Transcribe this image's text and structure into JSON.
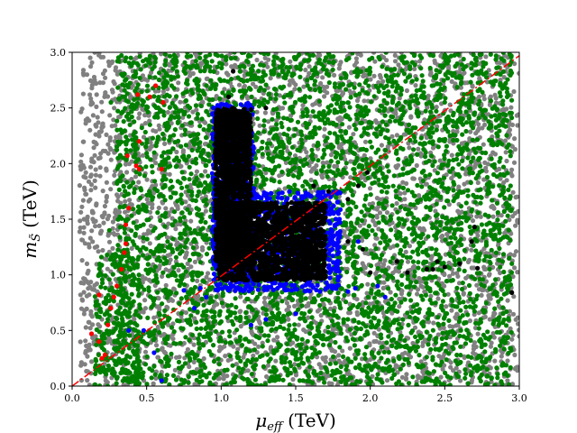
{
  "chart_data": {
    "type": "scatter",
    "xlabel_main": "μ",
    "xlabel_sub": "eff",
    "xlabel_unit": "(TeV)",
    "ylabel_main": "m",
    "ylabel_sub": "S̃",
    "ylabel_unit": "(TeV)",
    "xlim": [
      0.0,
      3.0
    ],
    "ylim": [
      0.0,
      3.0
    ],
    "xticks": [
      "0.0",
      "0.5",
      "1.0",
      "1.5",
      "2.0",
      "2.5",
      "3.0"
    ],
    "yticks": [
      "0.0",
      "0.5",
      "1.0",
      "1.5",
      "2.0",
      "2.5",
      "3.0"
    ],
    "grid": false,
    "legend": "none",
    "colors": {
      "gray": "#808080",
      "green": "#008000",
      "red": "#ff0000",
      "blue": "#0000ff",
      "black": "#000000",
      "reference_line": "#ff0000"
    },
    "reference_line": {
      "style": "dash-dot",
      "points": [
        [
          0.0,
          0.0
        ],
        [
          3.0,
          2.97
        ]
      ]
    },
    "series": [
      {
        "color_key": "gray",
        "regions": [
          {
            "x": [
              0.05,
              3.0
            ],
            "y": [
              0.0,
              3.0
            ],
            "count": 3600
          }
        ],
        "points": [
          [
            0.1,
            2.8
          ],
          [
            0.12,
            2.3
          ],
          [
            0.08,
            1.5
          ],
          [
            0.15,
            0.4
          ],
          [
            0.2,
            0.6
          ],
          [
            0.25,
            2.9
          ],
          [
            2.9,
            2.9
          ],
          [
            2.95,
            2.1
          ]
        ]
      },
      {
        "color_key": "green",
        "regions": [
          {
            "x": [
              0.3,
              2.95
            ],
            "y": [
              0.0,
              3.0
            ],
            "count": 4200
          },
          {
            "x": [
              0.15,
              0.45
            ],
            "y": [
              0.0,
              1.2
            ],
            "count": 250
          }
        ],
        "points": [
          [
            0.2,
            0.45
          ],
          [
            0.25,
            1.4
          ],
          [
            0.3,
            2.15
          ],
          [
            0.35,
            2.7
          ],
          [
            2.6,
            0.45
          ],
          [
            2.85,
            0.6
          ],
          [
            2.95,
            1.1
          ],
          [
            0.2,
            0.38
          ],
          [
            0.26,
            2.55
          ]
        ]
      },
      {
        "color_key": "red",
        "points": [
          [
            0.2,
            0.25
          ],
          [
            0.22,
            0.28
          ],
          [
            0.18,
            0.4
          ],
          [
            0.24,
            0.55
          ],
          [
            0.26,
            0.7
          ],
          [
            0.28,
            0.8
          ],
          [
            0.3,
            0.9
          ],
          [
            0.33,
            1.05
          ],
          [
            0.35,
            1.2
          ],
          [
            0.36,
            1.28
          ],
          [
            0.36,
            1.45
          ],
          [
            0.38,
            1.6
          ],
          [
            0.37,
            2.07
          ],
          [
            0.43,
            1.98
          ],
          [
            0.45,
            1.95
          ],
          [
            0.6,
            1.95
          ],
          [
            0.52,
            2.6
          ],
          [
            0.56,
            2.7
          ],
          [
            0.61,
            2.55
          ],
          [
            0.45,
            2.2
          ],
          [
            0.13,
            0.47
          ],
          [
            0.18,
            0.82
          ],
          [
            0.44,
            2.62
          ]
        ]
      },
      {
        "color_key": "blue",
        "regions": [
          {
            "x": [
              0.94,
              1.22
            ],
            "y": [
              0.95,
              2.55
            ],
            "count": 700
          },
          {
            "x": [
              0.95,
              1.8
            ],
            "y": [
              0.85,
              1.75
            ],
            "count": 900
          }
        ],
        "points": [
          [
            0.48,
            0.5
          ],
          [
            0.38,
            0.5
          ],
          [
            0.55,
            0.3
          ],
          [
            0.6,
            0.05
          ],
          [
            0.82,
            0.7
          ],
          [
            0.86,
            0.88
          ],
          [
            0.75,
            0.86
          ],
          [
            1.85,
            0.85
          ],
          [
            1.9,
            0.88
          ],
          [
            1.92,
            1.3
          ],
          [
            2.05,
            0.9
          ],
          [
            1.3,
            0.6
          ],
          [
            1.2,
            0.55
          ],
          [
            1.5,
            0.65
          ],
          [
            1.75,
            0.9
          ],
          [
            2.1,
            0.8
          ],
          [
            0.9,
            0.8
          ]
        ]
      },
      {
        "color_key": "black",
        "regions": [
          {
            "x": [
              0.96,
              1.2
            ],
            "y": [
              1.1,
              2.5
            ],
            "count": 1400
          },
          {
            "x": [
              0.98,
              1.7
            ],
            "y": [
              0.95,
              1.65
            ],
            "count": 1700
          }
        ],
        "points": [
          [
            1.05,
            2.6
          ],
          [
            1.15,
            2.45
          ],
          [
            1.08,
            2.83
          ],
          [
            1.3,
            2.5
          ],
          [
            1.85,
            1.3
          ],
          [
            1.95,
            1.23
          ],
          [
            1.92,
            1.8
          ],
          [
            1.98,
            1.92
          ],
          [
            2.0,
            1.02
          ],
          [
            2.18,
            1.12
          ],
          [
            2.25,
            1.02
          ],
          [
            2.38,
            1.05
          ],
          [
            2.42,
            1.05
          ],
          [
            2.45,
            1.12
          ],
          [
            2.5,
            1.07
          ],
          [
            2.6,
            1.1
          ],
          [
            2.68,
            1.3
          ],
          [
            2.7,
            1.43
          ],
          [
            2.72,
            1.06
          ],
          [
            2.95,
            0.84
          ],
          [
            1.72,
            1.75
          ],
          [
            1.62,
            1.8
          ],
          [
            1.85,
            1.68
          ],
          [
            1.55,
            1.65
          ],
          [
            1.7,
            0.98
          ]
        ]
      }
    ]
  }
}
